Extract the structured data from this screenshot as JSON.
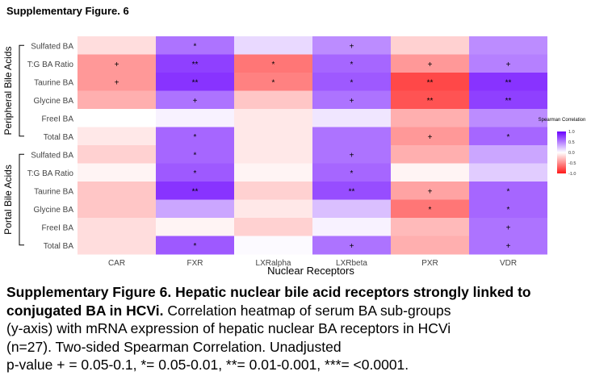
{
  "figure_label": "Supplementary Figure. 6",
  "caption": {
    "bold": "Supplementary Figure 6. Hepatic nuclear bile acid receptors strongly linked to conjugated BA in HCVi.",
    "lines": [
      "Correlation heatmap of serum BA sub-groups",
      "(y-axis) with mRNA expression of hepatic nuclear BA receptors in HCVi",
      "(n=27). Two-sided Spearman Correlation. Unadjusted",
      "p-value + = 0.05-0.1, *= 0.05-0.01, **= 0.01-0.001, ***= <0.0001."
    ]
  },
  "chart_data": {
    "type": "heatmap",
    "xlabel": "Nuclear Receptors",
    "columns": [
      "CAR",
      "FXR",
      "LXRalpha",
      "LXRbeta",
      "PXR",
      "VDR"
    ],
    "row_groups": [
      {
        "name": "Peripheral Bile Acids",
        "rows": [
          "Sulfated BA",
          "T:G BA Ratio",
          "Taurine BA",
          "Glycine BA",
          "FreeI BA",
          "Total BA"
        ]
      },
      {
        "name": "Portal Bile Acids",
        "rows": [
          "Sulfated BA",
          "T:G BA Ratio",
          "Taurine BA",
          "Glycine BA",
          "FreeI BA",
          "Total BA"
        ]
      }
    ],
    "values": [
      [
        -0.15,
        0.55,
        0.15,
        0.45,
        -0.2,
        0.45
      ],
      [
        -0.45,
        0.75,
        -0.6,
        0.6,
        -0.45,
        0.5
      ],
      [
        -0.45,
        0.8,
        -0.55,
        0.65,
        -0.8,
        0.8
      ],
      [
        -0.35,
        0.55,
        -0.25,
        0.55,
        -0.75,
        0.75
      ],
      [
        0.0,
        0.05,
        -0.1,
        0.1,
        -0.35,
        0.45
      ],
      [
        -0.1,
        0.6,
        -0.1,
        0.55,
        -0.45,
        0.6
      ],
      [
        -0.2,
        0.6,
        -0.1,
        0.55,
        -0.35,
        0.35
      ],
      [
        -0.05,
        0.65,
        -0.05,
        0.6,
        -0.05,
        0.2
      ],
      [
        -0.25,
        0.8,
        -0.2,
        0.7,
        -0.4,
        0.6
      ],
      [
        -0.25,
        0.35,
        -0.1,
        0.25,
        -0.6,
        0.6
      ],
      [
        -0.15,
        -0.05,
        -0.2,
        0.05,
        -0.3,
        0.55
      ],
      [
        -0.15,
        0.65,
        0.02,
        0.55,
        -0.35,
        0.55
      ]
    ],
    "annotations": [
      [
        "",
        "*",
        "",
        "+",
        "",
        ""
      ],
      [
        "+",
        "**",
        "*",
        "*",
        "+",
        "+"
      ],
      [
        "+",
        "**",
        "*",
        "*",
        "**",
        "**"
      ],
      [
        "",
        "+",
        "",
        "+",
        "**",
        "**"
      ],
      [
        "",
        "",
        "",
        "",
        "",
        ""
      ],
      [
        "",
        "*",
        "",
        "",
        "+",
        "*"
      ],
      [
        "",
        "*",
        "",
        "+",
        "",
        ""
      ],
      [
        "",
        "*",
        "",
        "*",
        "",
        ""
      ],
      [
        "",
        "**",
        "",
        "**",
        "+",
        "*"
      ],
      [
        "",
        "",
        "",
        "",
        "*",
        "*"
      ],
      [
        "",
        "",
        "",
        "",
        "",
        "+"
      ],
      [
        "",
        "*",
        "",
        "+",
        "",
        "+"
      ]
    ],
    "legend": {
      "title": "Spearman Correlation",
      "ticks": [
        1.0,
        0.5,
        0.0,
        -0.5,
        -1.0
      ],
      "tick_labels": [
        "1.0",
        "0.5",
        "0.0",
        "-0.5",
        "-1.0"
      ],
      "range": [
        -1.0,
        1.0
      ],
      "colors": {
        "high": "#6a00ff",
        "mid": "#ffffff",
        "low": "#ff1a1a"
      }
    }
  }
}
